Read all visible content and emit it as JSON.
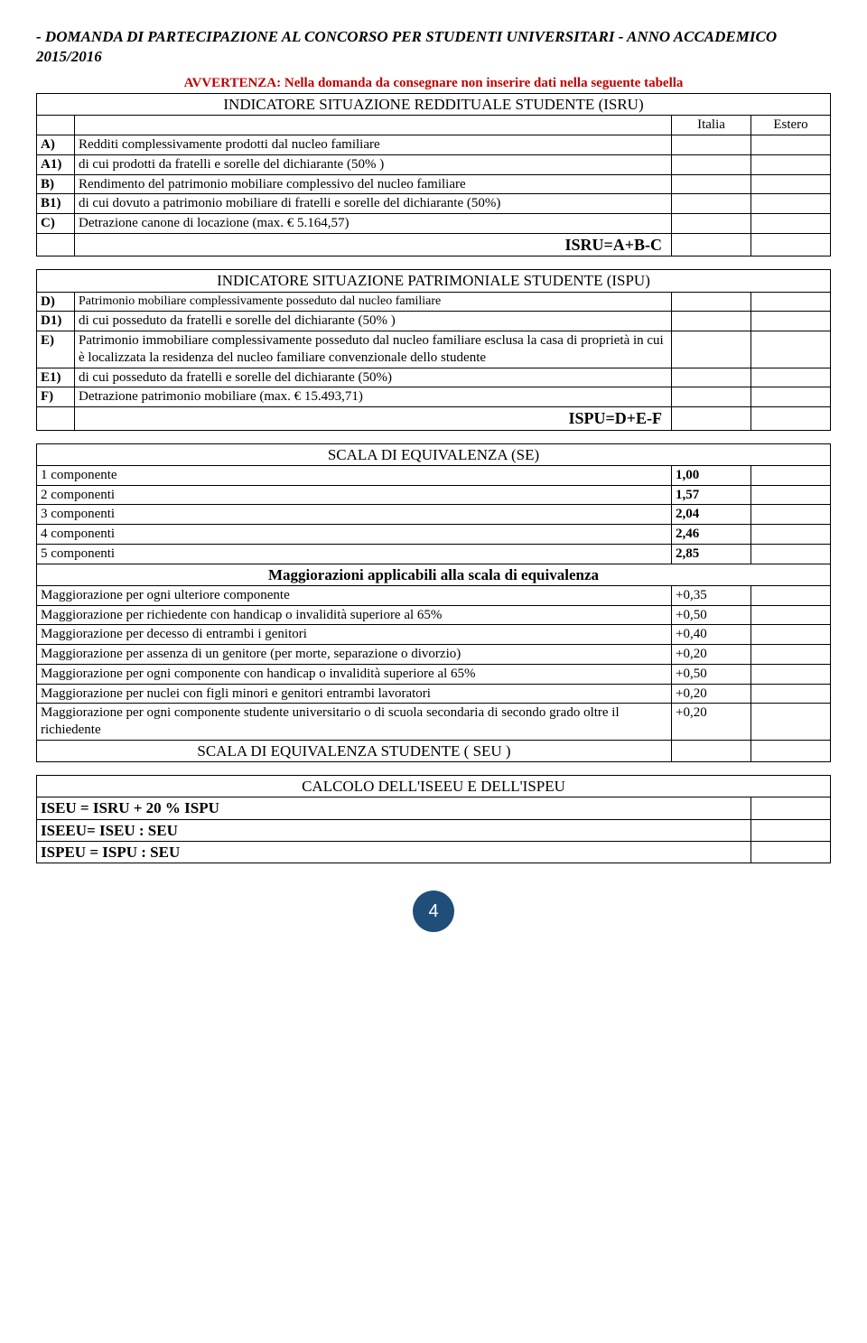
{
  "doc_title": "- DOMANDA DI PARTECIPAZIONE AL CONCORSO PER STUDENTI UNIVERSITARI - ANNO ACCADEMICO 2015/2016",
  "avvertenza": "AVVERTENZA: Nella domanda da consegnare non inserire dati nella seguente tabella",
  "isru": {
    "title": "INDICATORE SITUAZIONE REDDITUALE  STUDENTE (ISRU)",
    "italia": "Italia",
    "estero": "Estero",
    "rows": [
      {
        "k": "A)",
        "t": "Redditi complessivamente prodotti dal nucleo familiare"
      },
      {
        "k": "A1)",
        "t": "di cui prodotti da fratelli e sorelle del dichiarante (50% )"
      },
      {
        "k": "B)",
        "t": "Rendimento del patrimonio mobiliare complessivo del nucleo familiare"
      },
      {
        "k": "B1)",
        "t": "di cui dovuto a patrimonio mobiliare di fratelli e sorelle del dichiarante (50%)"
      },
      {
        "k": "C)",
        "t": "Detrazione canone di locazione (max. € 5.164,57)"
      }
    ],
    "result": "ISRU=A+B-C"
  },
  "ispu": {
    "title": "INDICATORE  SITUAZIONE PATRIMONIALE STUDENTE (ISPU)",
    "rows": [
      {
        "k": "D)",
        "t": "Patrimonio mobiliare complessivamente posseduto dal nucleo familiare",
        "small": true
      },
      {
        "k": "D1)",
        "t": "di cui posseduto da fratelli e sorelle del dichiarante (50% )"
      },
      {
        "k": "E)",
        "t": "Patrimonio immobiliare complessivamente posseduto dal nucleo familiare esclusa la casa di proprietà in cui è localizzata la residenza del nucleo familiare convenzionale dello studente"
      },
      {
        "k": "E1)",
        "t": "di cui posseduto da fratelli e sorelle del dichiarante (50%)"
      },
      {
        "k": "F)",
        "t": "Detrazione patrimonio mobiliare (max. € 15.493,71)"
      }
    ],
    "result": "ISPU=D+E-F"
  },
  "se": {
    "title": "SCALA DI EQUIVALENZA (SE)",
    "componenti": [
      {
        "label": "1 componente",
        "val": "1,00"
      },
      {
        "label": "2 componenti",
        "val": "1,57"
      },
      {
        "label": "3 componenti",
        "val": "2,04"
      },
      {
        "label": "4 componenti",
        "val": "2,46"
      },
      {
        "label": "5 componenti",
        "val": "2,85"
      }
    ],
    "magg_title": "Maggiorazioni applicabili alla scala di equivalenza",
    "maggiorazioni": [
      {
        "label": "Maggiorazione per ogni ulteriore componente",
        "val": "+0,35"
      },
      {
        "label": "Maggiorazione per richiedente con handicap o invalidità superiore al 65%",
        "val": "+0,50"
      },
      {
        "label": "Maggiorazione per decesso di entrambi i genitori",
        "val": "+0,40"
      },
      {
        "label": "Maggiorazione per assenza di un genitore (per morte, separazione o divorzio)",
        "val": "+0,20"
      },
      {
        "label": "Maggiorazione per ogni componente con handicap o invalidità superiore al 65%",
        "val": "+0,50"
      },
      {
        "label": "Maggiorazione per nuclei con figli minori e genitori entrambi lavoratori",
        "val": "+0,20"
      },
      {
        "label": "Maggiorazione per ogni componente studente universitario o di scuola secondaria di secondo grado oltre il richiedente",
        "val": "+0,20"
      }
    ],
    "seu": "SCALA DI EQUIVALENZA STUDENTE ( SEU )"
  },
  "calc": {
    "title": "CALCOLO DELL'ISEEU E  DELL'ISPEU",
    "rows": [
      "ISEU = ISRU + 20 % ISPU",
      "ISEEU= ISEU : SEU",
      "ISPEU = ISPU : SEU"
    ]
  },
  "page_number": "4"
}
